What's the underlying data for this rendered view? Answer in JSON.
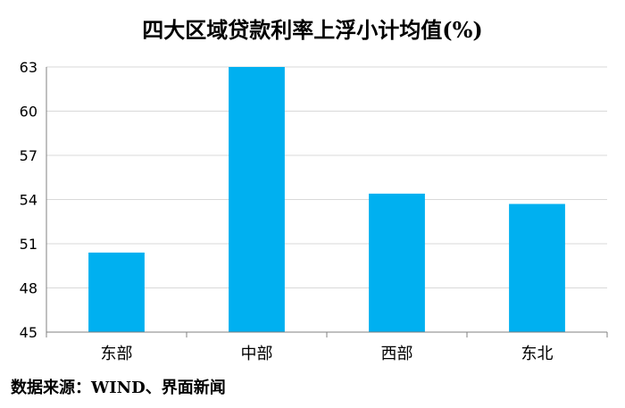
{
  "chart_data": {
    "type": "bar",
    "title": "四大区域贷款利率上浮小计均值(%)",
    "categories": [
      "东部",
      "中部",
      "西部",
      "东北"
    ],
    "values": [
      50.4,
      63.0,
      54.4,
      53.7
    ],
    "ylim": [
      45,
      63
    ],
    "yticks": [
      45,
      48,
      51,
      54,
      57,
      60,
      63
    ],
    "bar_color": "#00B0F0",
    "grid": true,
    "grid_color": "#D9D9D9",
    "legend": "none"
  },
  "source": "数据来源：WIND、界面新闻"
}
